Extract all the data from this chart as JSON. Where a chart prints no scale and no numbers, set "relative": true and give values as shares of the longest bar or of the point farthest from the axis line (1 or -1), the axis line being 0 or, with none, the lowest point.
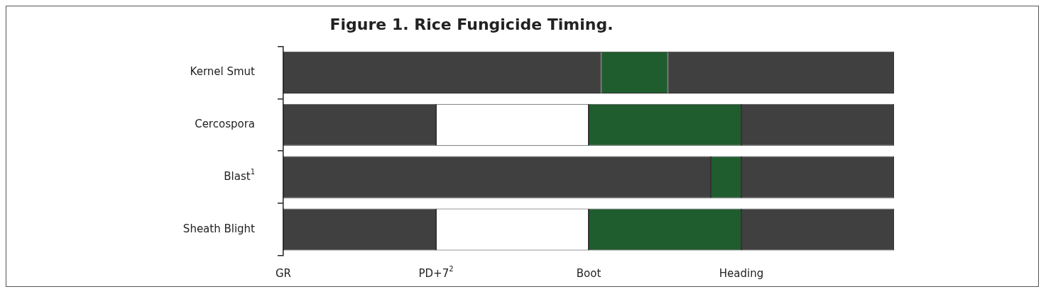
{
  "chart_data": {
    "type": "bar",
    "orientation": "horizontal",
    "stacked": true,
    "relative": true,
    "title": "Figure 1. Rice Fungicide Timing.",
    "categories": [
      "Kernel Smut",
      "Cercospora",
      "Blast$^{1}$",
      "Sheath Blight"
    ],
    "series": [
      {
        "colors": [
          "#404040",
          "#404040",
          "#404040",
          "#404040"
        ],
        "values": [
          0.52,
          0.25,
          0.7,
          0.25
        ]
      },
      {
        "colors": [
          "#1f5c2e",
          "#ffffff",
          "#1f5c2e",
          "#ffffff"
        ],
        "values": [
          0.11,
          0.25,
          0.05,
          0.25
        ]
      },
      {
        "colors": [
          "#404040",
          "#1f5c2e",
          "#404040",
          "#1f5c2e"
        ],
        "values": [
          0.37,
          0.25,
          0.25,
          0.25
        ]
      },
      {
        "colors": [
          "#404040",
          "#404040",
          "#404040",
          "#404040"
        ],
        "values": [
          null,
          0.25,
          null,
          0.25
        ]
      }
    ],
    "annotations": [
      "GR",
      "PD+7$^{2}$",
      "Boot",
      "Heading"
    ],
    "legend": false
  }
}
